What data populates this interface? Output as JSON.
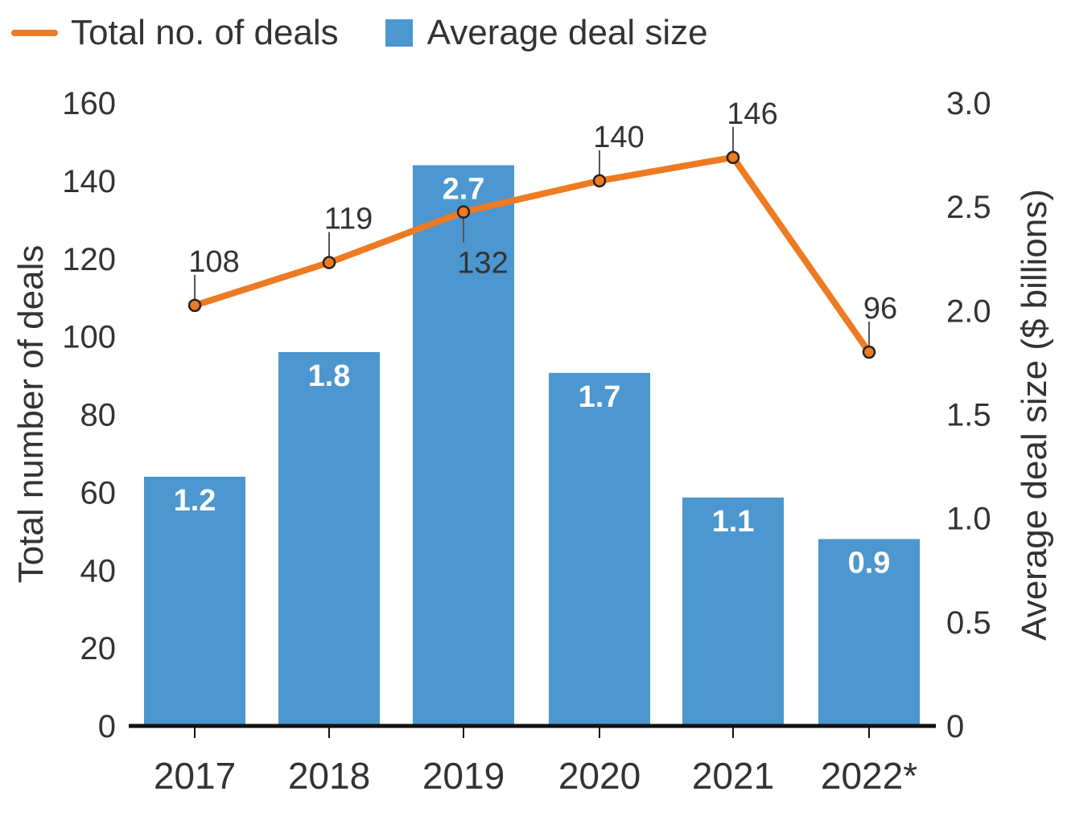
{
  "legend": {
    "line_label": "Total no. of deals",
    "bar_label": "Average deal size"
  },
  "colors": {
    "line": "#ee7a22",
    "bar": "#4c97cf",
    "axis": "#111111",
    "text": "#333333"
  },
  "chart_data": {
    "type": "bar",
    "title": "",
    "categories": [
      "2017",
      "2018",
      "2019",
      "2020",
      "2021",
      "2022*"
    ],
    "series": [
      {
        "name": "Average deal size",
        "type": "bar",
        "axis": "right",
        "values": [
          1.2,
          1.8,
          2.7,
          1.7,
          1.1,
          0.9
        ],
        "labels": [
          "1.2",
          "1.8",
          "2.7",
          "1.7",
          "1.1",
          "0.9"
        ]
      },
      {
        "name": "Total no. of deals",
        "type": "line",
        "axis": "left",
        "values": [
          108,
          119,
          132,
          140,
          146,
          96
        ],
        "labels": [
          "108",
          "119",
          "132",
          "140",
          "146",
          "96"
        ]
      }
    ],
    "ylabel_left": "Total number of deals",
    "ylabel_right": "Average deal size  ($ billions)",
    "ylim_left": [
      0,
      160
    ],
    "ylim_right": [
      0,
      3.0
    ],
    "yticks_left": [
      "0",
      "20",
      "40",
      "60",
      "80",
      "100",
      "120",
      "140",
      "160"
    ],
    "yticks_right": [
      "0",
      "0.5",
      "1.0",
      "1.5",
      "2.0",
      "2.5",
      "3.0"
    ],
    "legend_position": "top-left",
    "grid": false
  }
}
